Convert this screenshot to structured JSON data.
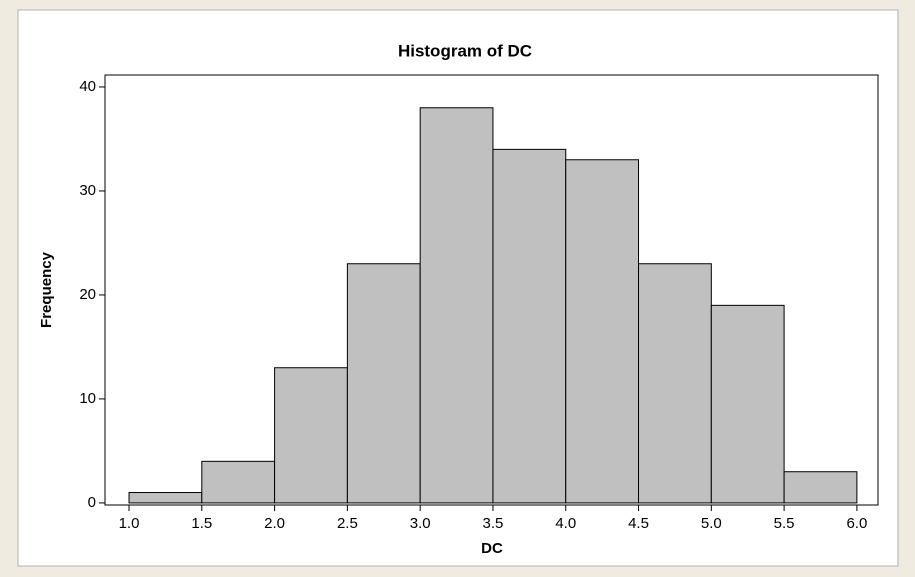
{
  "chart_data": {
    "type": "histogram",
    "title": "Histogram of DC",
    "x_label": "DC",
    "y_label": "Frequency",
    "bins": [
      1,
      1.5,
      2,
      2.5,
      3,
      3.5,
      4,
      4.5,
      5,
      5.5,
      6
    ],
    "values": [
      1,
      4,
      13,
      23,
      38,
      34,
      33,
      23,
      19,
      3
    ],
    "color": "#c0c0c0",
    "xlim": [
      0.835,
      6.145
    ],
    "ylim": [
      -0.2,
      41.15
    ],
    "xticks": [
      {
        "value": 1,
        "label": "1.0"
      },
      1.5,
      {
        "value": 2,
        "label": "2.0"
      },
      2.5,
      {
        "value": 3,
        "label": "3.0"
      },
      3.5,
      {
        "value": 4,
        "label": "4.0"
      },
      4.5,
      {
        "value": 5,
        "label": "5.0"
      },
      5.5,
      {
        "value": 6,
        "label": "6.0"
      }
    ],
    "yticks": [
      0,
      10,
      20,
      30,
      40
    ]
  }
}
